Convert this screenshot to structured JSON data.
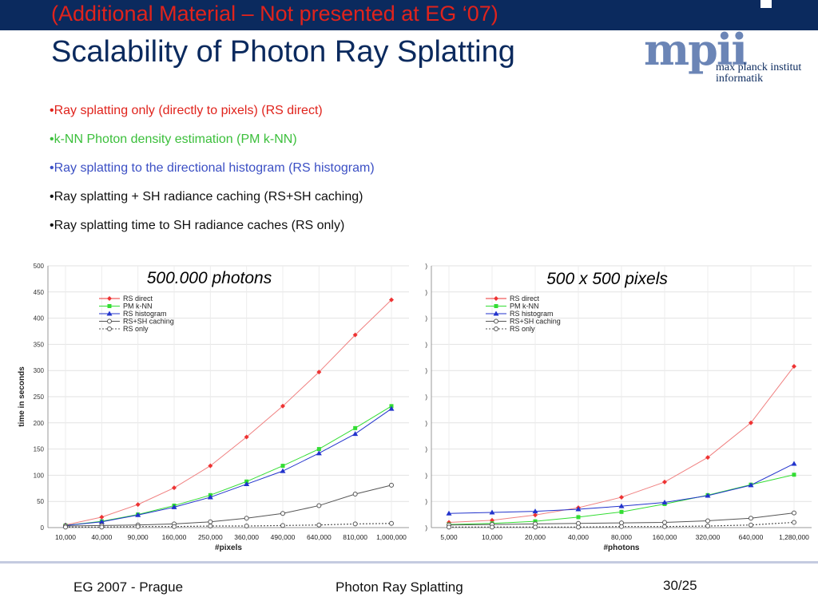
{
  "slide": {
    "subtitle": "(Additional Material – Not  presented at EG ‘07)",
    "title": "Scalability of Photon Ray Splatting",
    "logo": {
      "mark": "mpii",
      "line1": "max planck institut",
      "line2": "informatik"
    },
    "bullets": [
      {
        "text": "•Ray splatting only (directly to pixels) (RS direct)",
        "color": "#e0231c"
      },
      {
        "text": "•k-NN Photon density estimation (PM k-NN)",
        "color": "#3bbf3b"
      },
      {
        "text": "•Ray splatting to the directional histogram (RS histogram)",
        "color": "#3b4fc4"
      },
      {
        "text": "•Ray splatting + SH radiance caching (RS+SH caching)",
        "color": "#111111"
      },
      {
        "text": "•Ray splatting time to SH radiance caches (RS only)",
        "color": "#111111"
      }
    ],
    "footer": {
      "left": "EG 2007 - Prague",
      "center": "Photon Ray Splatting",
      "right": "30/25"
    }
  },
  "chart_data": [
    {
      "type": "line",
      "annotation": "500.000 photons",
      "categories": [
        "10,000",
        "40,000",
        "90,000",
        "160,000",
        "250,000",
        "360,000",
        "490,000",
        "640,000",
        "810,000",
        "1,000,000"
      ],
      "xlabel": "#pixels",
      "ylabel": "time in seconds",
      "ylim": [
        0,
        500
      ],
      "yticks": [
        0,
        50,
        100,
        150,
        200,
        250,
        300,
        350,
        400,
        450,
        500
      ],
      "ytick_labels": [
        "0",
        "50",
        "100",
        "150",
        "200",
        "250",
        "300",
        "350",
        "400",
        "450",
        "500"
      ],
      "grid": true,
      "legend": "top-left",
      "series": [
        {
          "name": "RS direct",
          "values": [
            5,
            20,
            44,
            76,
            118,
            173,
            232,
            297,
            368,
            435
          ],
          "color": "#ee3333",
          "marker": "diamond",
          "dash": false
        },
        {
          "name": "PM k-NN",
          "values": [
            4,
            12,
            25,
            42,
            62,
            88,
            118,
            150,
            190,
            232
          ],
          "color": "#33dd33",
          "marker": "square",
          "dash": false
        },
        {
          "name": "RS histogram",
          "values": [
            4,
            11,
            24,
            39,
            58,
            83,
            108,
            142,
            179,
            227
          ],
          "color": "#2233cc",
          "marker": "triangle",
          "dash": false
        },
        {
          "name": "RS+SH caching",
          "values": [
            3,
            4,
            5,
            7,
            11,
            18,
            27,
            42,
            64,
            81
          ],
          "color": "#555555",
          "marker": "circle",
          "dash": false
        },
        {
          "name": "RS only",
          "values": [
            1,
            1,
            2,
            2,
            3,
            3,
            4,
            5,
            7,
            8
          ],
          "color": "#555555",
          "marker": "circle",
          "dash": true
        }
      ]
    },
    {
      "type": "line",
      "annotation": "500 x 500 pixels",
      "categories": [
        "5,000",
        "10,000",
        "20,000",
        "40,000",
        "80,000",
        "160,000",
        "320,000",
        "640,000",
        "1,280,000"
      ],
      "xlabel": "#photons",
      "ylabel": "",
      "ylim": [
        0,
        500
      ],
      "yticks": [
        0,
        50,
        100,
        150,
        200,
        250,
        300,
        350,
        400,
        450,
        500
      ],
      "ytick_labels": [
        ")",
        ")",
        ")",
        ")",
        ")",
        ")",
        ")",
        ")",
        ")",
        ")",
        ")"
      ],
      "grid": true,
      "legend": "top-left",
      "series": [
        {
          "name": "RS direct",
          "values": [
            10,
            14,
            24,
            38,
            58,
            87,
            134,
            200,
            308
          ],
          "color": "#ee3333",
          "marker": "diamond",
          "dash": false
        },
        {
          "name": "PM k-NN",
          "values": [
            6,
            8,
            12,
            20,
            30,
            45,
            62,
            82,
            101
          ],
          "color": "#33dd33",
          "marker": "square",
          "dash": false
        },
        {
          "name": "RS histogram",
          "values": [
            27,
            29,
            31,
            35,
            41,
            48,
            61,
            81,
            122
          ],
          "color": "#2233cc",
          "marker": "triangle",
          "dash": false
        },
        {
          "name": "RS+SH caching",
          "values": [
            5,
            6,
            7,
            8,
            9,
            10,
            13,
            18,
            28
          ],
          "color": "#555555",
          "marker": "circle",
          "dash": false
        },
        {
          "name": "RS only",
          "values": [
            1,
            1,
            1,
            1,
            2,
            2,
            3,
            5,
            10
          ],
          "color": "#555555",
          "marker": "circle",
          "dash": true
        }
      ]
    }
  ]
}
